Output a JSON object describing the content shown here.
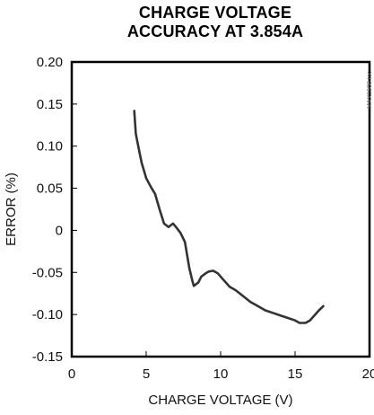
{
  "chart_data": {
    "type": "line",
    "title_line1": "CHARGE VOLTAGE",
    "title_line2": "ACCURACY AT 3.854A",
    "xlabel": "CHARGE VOLTAGE (V)",
    "ylabel": "ERROR (%)",
    "xlim": [
      0,
      20
    ],
    "ylim": [
      -0.15,
      0.2
    ],
    "x_ticks": [
      "0",
      "5",
      "10",
      "15",
      "20"
    ],
    "y_ticks": [
      "0.20",
      "0.15",
      "0.10",
      "0.05",
      "0",
      "-0.05",
      "-0.10",
      "-0.15"
    ],
    "side_note": "MAX1908 toc",
    "grid": false,
    "line_color": "#333333",
    "series": [
      {
        "x": [
          4.2,
          4.3,
          4.5,
          4.7,
          5.0,
          5.3,
          5.6,
          5.9,
          6.2,
          6.5,
          6.8,
          7.0,
          7.3,
          7.6,
          7.9,
          8.1,
          8.2,
          8.35,
          8.5,
          8.7,
          9.0,
          9.2,
          9.5,
          9.8,
          10.2,
          10.6,
          11.0,
          11.5,
          12.0,
          12.5,
          13.0,
          13.5,
          14.0,
          14.5,
          15.0,
          15.3,
          15.7,
          16.0,
          16.3,
          16.6,
          16.9
        ],
        "y": [
          0.142,
          0.115,
          0.097,
          0.08,
          0.062,
          0.052,
          0.043,
          0.025,
          0.008,
          0.004,
          0.008,
          0.004,
          -0.003,
          -0.014,
          -0.045,
          -0.06,
          -0.066,
          -0.064,
          -0.062,
          -0.055,
          -0.051,
          -0.049,
          -0.048,
          -0.051,
          -0.059,
          -0.067,
          -0.071,
          -0.078,
          -0.085,
          -0.09,
          -0.095,
          -0.098,
          -0.101,
          -0.104,
          -0.107,
          -0.11,
          -0.11,
          -0.107,
          -0.101,
          -0.095,
          -0.09
        ]
      }
    ]
  }
}
